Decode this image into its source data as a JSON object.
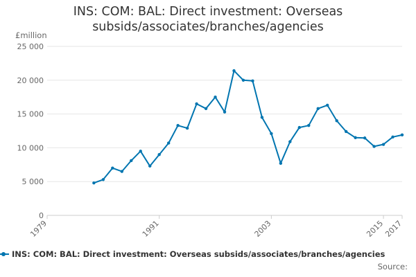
{
  "header": {
    "title_line1": "INS: COM: BAL: Direct investment: Overseas",
    "title_line2": "subsids/associates/branches/agencies",
    "unit": "£million"
  },
  "legend": {
    "label": "INS: COM: BAL: Direct investment: Overseas subsids/associates/branches/agencies"
  },
  "footer": {
    "source": "Source:"
  },
  "colors": {
    "series": "#0075b0",
    "grid": "#e6e6e6",
    "axis_text": "#666666"
  },
  "chart_data": {
    "type": "line",
    "title": "INS: COM: BAL: Direct investment: Overseas subsids/associates/branches/agencies",
    "ylabel": "£million",
    "xlim": [
      1979,
      2017
    ],
    "ylim": [
      0,
      25000
    ],
    "yticks": [
      0,
      5000,
      10000,
      15000,
      20000,
      25000
    ],
    "ytick_labels": [
      "0",
      "5 000",
      "10 000",
      "15 000",
      "20 000",
      "25 000"
    ],
    "xticks": [
      1979,
      1991,
      2003,
      2015,
      2017
    ],
    "xtick_labels": [
      "1979",
      "1991",
      "2003",
      "2015",
      "2017"
    ],
    "grid": "horizontal",
    "legend_position": "bottom",
    "series": [
      {
        "name": "INS: COM: BAL: Direct investment: Overseas subsids/associates/branches/agencies",
        "x": [
          1984,
          1985,
          1986,
          1987,
          1988,
          1989,
          1990,
          1991,
          1992,
          1993,
          1994,
          1995,
          1996,
          1997,
          1998,
          1999,
          2000,
          2001,
          2002,
          2003,
          2004,
          2005,
          2006,
          2007,
          2008,
          2009,
          2010,
          2011,
          2012,
          2013,
          2014,
          2015,
          2016,
          2017
        ],
        "y": [
          4800,
          5300,
          7000,
          6500,
          8100,
          9500,
          7300,
          9000,
          10700,
          13300,
          12900,
          16500,
          15800,
          17500,
          15300,
          21400,
          20000,
          19900,
          14500,
          12100,
          7700,
          10900,
          13000,
          13300,
          15800,
          16300,
          14000,
          12400,
          11500,
          11450,
          10200,
          10500,
          11600,
          11900
        ]
      }
    ]
  }
}
